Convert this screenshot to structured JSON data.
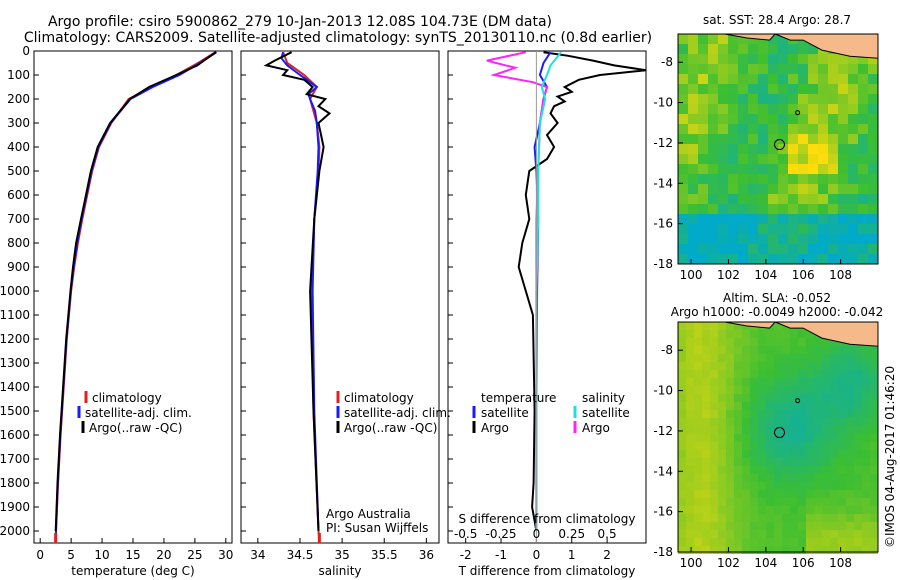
{
  "header": {
    "line1": "Argo profile: csiro 5900862_279 10-Jan-2013 12.08S 104.73E (DM data)",
    "line2": "Climatology: CARS2009. Satellite-adjusted climatology: synTS_20130110.nc (0.8d earlier)"
  },
  "colors": {
    "climatology": "#e02020",
    "satellite": "#1a1aff",
    "argo": "#000000",
    "sat_salinity": "#22e0e0",
    "argo_salinity": "#ff22ff",
    "land": "#f5b98a"
  },
  "chart_data": [
    {
      "type": "line",
      "xlabel": "temperature (deg C)",
      "xlim": [
        -1,
        31
      ],
      "ylim": [
        2050,
        0
      ],
      "xticks": [
        0,
        5,
        10,
        15,
        20,
        25,
        30
      ],
      "yticks": [
        0,
        100,
        200,
        300,
        400,
        500,
        600,
        700,
        800,
        900,
        1000,
        1100,
        1200,
        1300,
        1400,
        1500,
        1600,
        1700,
        1800,
        1900,
        2000
      ],
      "legend": {
        "position": "bottom-left",
        "entries": [
          "climatology",
          "satellite-adj. clim.",
          "Argo(..raw -QC)"
        ]
      },
      "series": [
        {
          "name": "climatology",
          "color": "#e02020",
          "depth": [
            5,
            50,
            100,
            150,
            200,
            300,
            400,
            500,
            600,
            700,
            800,
            900,
            1000,
            1200,
            1400,
            1600,
            1800,
            2000,
            2050
          ],
          "x": [
            28.3,
            25.5,
            22,
            18,
            14.3,
            11.5,
            9.5,
            8.4,
            7.6,
            6.8,
            6.1,
            5.5,
            5,
            4.3,
            3.8,
            3.3,
            2.9,
            2.55,
            2.5
          ]
        },
        {
          "name": "satellite-adj. clim.",
          "color": "#1a1aff",
          "depth": [
            5,
            50,
            100,
            150,
            200,
            300,
            400,
            500,
            600,
            700,
            800,
            900,
            1000,
            1200,
            1400,
            1600,
            1800,
            2000,
            2050
          ],
          "x": [
            28.5,
            25.8,
            22.5,
            18.2,
            14.6,
            11.4,
            9.4,
            8.3,
            7.5,
            6.7,
            6.0,
            5.4,
            4.95,
            4.25,
            3.75,
            3.25,
            2.85,
            2.55,
            2.5
          ]
        },
        {
          "name": "Argo(..raw -QC)",
          "color": "#000000",
          "depth": [
            5,
            30,
            60,
            100,
            150,
            200,
            300,
            400,
            500,
            600,
            700,
            800,
            900,
            1000,
            1200,
            1400,
            1600,
            1800,
            2000
          ],
          "x": [
            28.4,
            27.0,
            25.4,
            22.0,
            17.6,
            14.5,
            11.3,
            9.3,
            8.2,
            7.4,
            6.6,
            5.8,
            5.3,
            4.9,
            4.2,
            3.7,
            3.2,
            2.8,
            2.5
          ]
        }
      ]
    },
    {
      "type": "line",
      "xlabel": "salinity",
      "xlim": [
        33.8,
        36.15
      ],
      "ylim": [
        2050,
        0
      ],
      "xticks": [
        34,
        34.5,
        35,
        35.5,
        36
      ],
      "legend": {
        "position": "bottom-left",
        "entries": [
          "climatology",
          "satellite-adj. clim.",
          "Argo(..raw -QC)"
        ]
      },
      "annotations": [
        "Argo Australia",
        "PI: Susan Wijffels"
      ],
      "series": [
        {
          "name": "climatology",
          "color": "#e02020",
          "depth": [
            5,
            50,
            100,
            150,
            200,
            300,
            400,
            500,
            700,
            1000,
            1500,
            2000,
            2050
          ],
          "s": [
            34.3,
            34.35,
            34.55,
            34.7,
            34.62,
            34.7,
            34.73,
            34.72,
            34.67,
            34.64,
            34.66,
            34.72,
            34.73
          ]
        },
        {
          "name": "satellite-adj. clim.",
          "color": "#1a1aff",
          "depth": [
            5,
            30,
            60,
            100,
            150,
            180,
            200,
            250,
            300,
            400,
            500,
            700,
            1000,
            1500,
            2000
          ],
          "s": [
            34.3,
            34.28,
            34.35,
            34.5,
            34.7,
            34.6,
            34.62,
            34.68,
            34.7,
            34.72,
            34.71,
            34.67,
            34.65,
            34.67,
            34.72
          ]
        },
        {
          "name": "Argo(..raw -QC)",
          "color": "#000000",
          "depth": [
            5,
            40,
            60,
            80,
            100,
            120,
            150,
            180,
            200,
            230,
            260,
            300,
            400,
            500,
            700,
            1000,
            1500,
            2000
          ],
          "s": [
            34.4,
            34.2,
            34.1,
            34.35,
            34.3,
            34.55,
            34.65,
            34.58,
            34.8,
            34.72,
            34.85,
            34.72,
            34.78,
            34.73,
            34.67,
            34.62,
            34.66,
            34.72
          ]
        }
      ]
    },
    {
      "type": "line",
      "xlabel": "T difference from climatology",
      "x2label": "S difference from climatology",
      "xlim": [
        -2.5,
        3.1
      ],
      "ylim": [
        2050,
        0
      ],
      "xticks": [
        -2,
        -1,
        0,
        1,
        2
      ],
      "x2ticks": [
        -0.5,
        -0.25,
        0,
        0.25,
        0.5
      ],
      "legend": {
        "position": "bottom",
        "entries": [
          "temperature",
          "satellite",
          "Argo",
          "salinity",
          "satellite",
          "Argo"
        ]
      },
      "series": [
        {
          "name": "temperature Argo",
          "color": "#000000",
          "depth": [
            5,
            20,
            40,
            60,
            80,
            100,
            120,
            150,
            170,
            190,
            210,
            230,
            260,
            300,
            350,
            400,
            450,
            500,
            600,
            700,
            800,
            900,
            1000,
            1100,
            1500,
            1800,
            1900,
            2000
          ],
          "x": [
            0.2,
            0.9,
            1.6,
            2.2,
            3.1,
            1.8,
            1.2,
            0.8,
            1.0,
            0.6,
            0.8,
            0.5,
            0.4,
            0.6,
            0.3,
            0.5,
            0.3,
            -0.2,
            -0.3,
            -0.2,
            -0.4,
            -0.5,
            -0.3,
            -0.1,
            -0.05,
            -0.08,
            -0.12,
            0
          ]
        },
        {
          "name": "temperature satellite",
          "color": "#1a1aff",
          "depth": [
            5,
            50,
            100,
            150,
            200,
            300,
            400,
            500,
            700,
            1000,
            1500,
            2000
          ],
          "x": [
            0.4,
            0.2,
            0.1,
            0.3,
            0.2,
            0.1,
            -0.05,
            0.0,
            0.05,
            0.02,
            0.0,
            0.0
          ]
        },
        {
          "name": "salinity Argo",
          "color": "#ff22ff",
          "depth": [
            5,
            40,
            70,
            100,
            130,
            150,
            200,
            300,
            500,
            700,
            1000,
            2000
          ],
          "x": [
            -0.3,
            -1.4,
            -0.6,
            -1.2,
            -0.1,
            0.3,
            0.2,
            0.1,
            0.05,
            0.0,
            0.0,
            0.0
          ]
        },
        {
          "name": "salinity satellite",
          "color": "#22e0e0",
          "depth": [
            5,
            60,
            100,
            150,
            200,
            300,
            500,
            700,
            1000,
            2000
          ],
          "x": [
            0.7,
            0.4,
            0.3,
            0.15,
            0.25,
            0.1,
            0.05,
            0.05,
            0.0,
            0.0
          ]
        }
      ]
    },
    {
      "type": "heatmap",
      "title": "sat. SST: 28.4 Argo: 28.7",
      "xticks": [
        100,
        102,
        104,
        106,
        108
      ],
      "yticks": [
        -8,
        -10,
        -12,
        -14,
        -16,
        -18
      ],
      "xlim": [
        99.3,
        110
      ],
      "ylim": [
        -18,
        -6.6
      ],
      "argo_position": [
        104.73,
        -12.08
      ],
      "secondary_point": [
        105.7,
        -10.5
      ]
    },
    {
      "type": "heatmap",
      "title": "Altim. SLA: -0.052",
      "subtitle": "Argo h1000: -0.0049 h2000: -0.042",
      "xticks": [
        100,
        102,
        104,
        106,
        108
      ],
      "yticks": [
        -8,
        -10,
        -12,
        -14,
        -16,
        -18
      ],
      "xlim": [
        99.3,
        110
      ],
      "ylim": [
        -18,
        -6.6
      ],
      "argo_position": [
        104.73,
        -12.08
      ],
      "secondary_point": [
        105.7,
        -10.5
      ]
    }
  ],
  "legend_temp": {
    "climatology": "climatology",
    "satellite": "satellite-adj. clim.",
    "argo": "Argo(..raw -QC)"
  },
  "legend_sal": {
    "climatology": "climatology",
    "satellite": "satellite-adj. clim.",
    "argo": "Argo(..raw -QC)",
    "credit1": "Argo Australia",
    "credit2": "PI: Susan Wijffels"
  },
  "legend_diff": {
    "temperature": "temperature",
    "salinity": "salinity",
    "t_satellite": "satellite",
    "t_argo": "Argo",
    "s_satellite": "satellite",
    "s_argo": "Argo"
  },
  "maps": {
    "sst_title": "sat. SST: 28.4 Argo: 28.7",
    "sla_title": "Altim. SLA: -0.052",
    "sla_subtitle": "Argo h1000: -0.0049 h2000: -0.042"
  },
  "watermark": "©IMOS 04-Aug-2017 01:46:20"
}
